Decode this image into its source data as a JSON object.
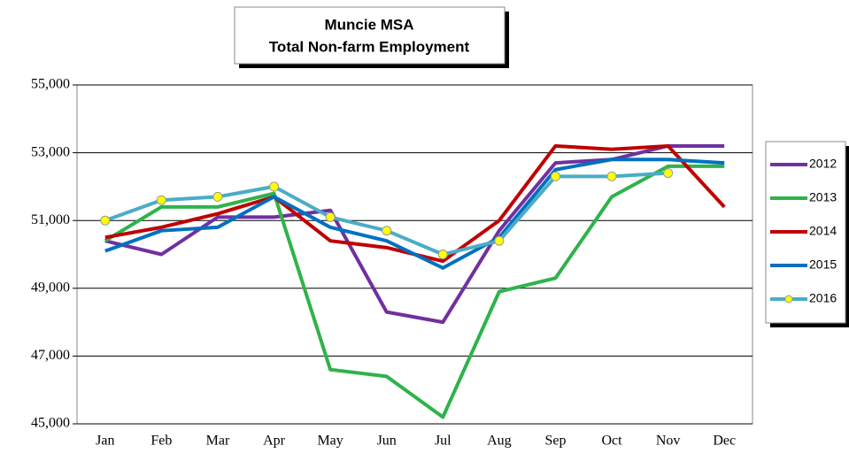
{
  "chart_data": {
    "type": "line",
    "title": "Muncie MSA",
    "subtitle": "Total Non-farm Employment",
    "categories": [
      "Jan",
      "Feb",
      "Mar",
      "Apr",
      "May",
      "Jun",
      "Jul",
      "Aug",
      "Sep",
      "Oct",
      "Nov",
      "Dec"
    ],
    "series": [
      {
        "name": "2012",
        "color": "#7030a0",
        "values": [
          50400,
          50000,
          51100,
          51100,
          51300,
          48300,
          48000,
          50700,
          52700,
          52800,
          53200,
          53200
        ]
      },
      {
        "name": "2013",
        "color": "#2eb34a",
        "values": [
          50400,
          51400,
          51400,
          51800,
          46600,
          46400,
          45200,
          48900,
          49300,
          51700,
          52600,
          52600
        ]
      },
      {
        "name": "2014",
        "color": "#c00000",
        "values": [
          50500,
          50800,
          51200,
          51700,
          50400,
          50200,
          49800,
          51000,
          53200,
          53100,
          53200,
          51400
        ]
      },
      {
        "name": "2015",
        "color": "#0070c0",
        "values": [
          50100,
          50700,
          50800,
          51700,
          50800,
          50400,
          49600,
          50500,
          52500,
          52800,
          52800,
          52700
        ]
      },
      {
        "name": "2016",
        "color": "#4bacc6",
        "marker": "circle",
        "marker_color": "#ffff00",
        "values": [
          51000,
          51600,
          51700,
          52000,
          51100,
          50700,
          50000,
          50400,
          52300,
          52300,
          52400,
          null
        ]
      }
    ],
    "ylim": [
      45000,
      55000
    ],
    "yticks": [
      {
        "value": 45000,
        "label": "45,000"
      },
      {
        "value": 47000,
        "label": "47,000"
      },
      {
        "value": 49000,
        "label": "49,000"
      },
      {
        "value": 51000,
        "label": "51,000"
      },
      {
        "value": 53000,
        "label": "53,000"
      },
      {
        "value": 55000,
        "label": "55,000"
      }
    ],
    "grid": true,
    "legend": "right"
  }
}
